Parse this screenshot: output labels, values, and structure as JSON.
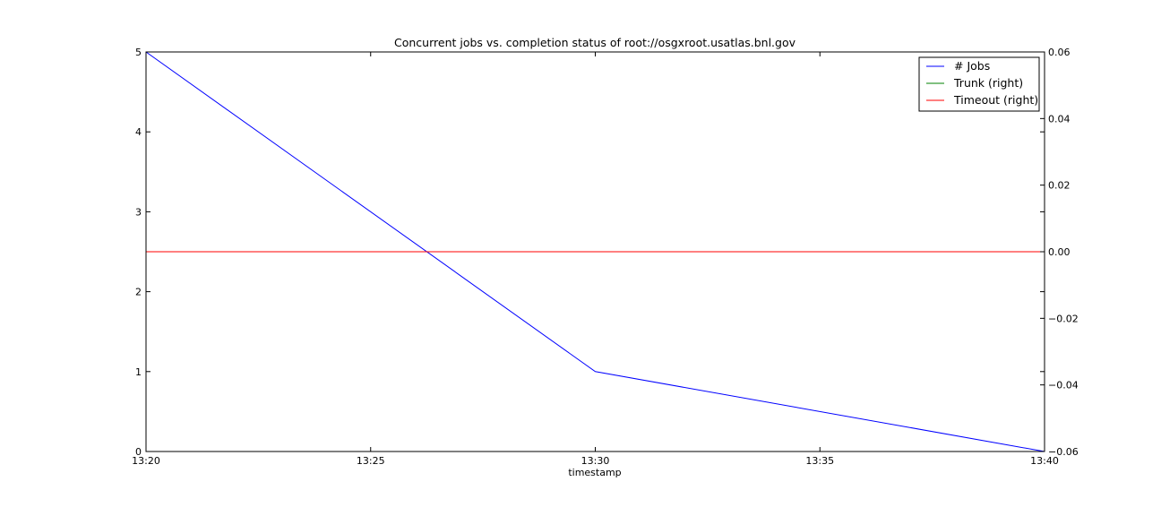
{
  "chart_data": {
    "type": "line",
    "title": "Concurrent jobs vs. completion status of root://osgxroot.usatlas.bnl.gov",
    "xlabel": "timestamp",
    "x_ticks": [
      "13:20",
      "13:25",
      "13:30",
      "13:35",
      "13:40"
    ],
    "xlim": [
      "13:20",
      "13:40"
    ],
    "ylim_left": [
      0,
      5
    ],
    "y_ticks_left": [
      "0",
      "1",
      "2",
      "3",
      "4",
      "5"
    ],
    "ylim_right": [
      -0.06,
      0.06
    ],
    "y_ticks_right": [
      "−0.06",
      "−0.04",
      "−0.02",
      "0.00",
      "0.02",
      "0.04",
      "0.06"
    ],
    "grid": false,
    "legend_position": "top-right",
    "series": [
      {
        "name": "# Jobs",
        "axis": "left",
        "color": "#0000ff",
        "points": [
          {
            "x": "13:20",
            "y": 5
          },
          {
            "x": "13:30",
            "y": 1
          },
          {
            "x": "13:40",
            "y": 0
          }
        ]
      },
      {
        "name": "Trunk (right)",
        "axis": "right",
        "color": "#008000",
        "points": [
          {
            "x": "13:20",
            "y": 0
          },
          {
            "x": "13:40",
            "y": 0
          }
        ]
      },
      {
        "name": "Timeout (right)",
        "axis": "right",
        "color": "#ff0000",
        "points": [
          {
            "x": "13:20",
            "y": 0
          },
          {
            "x": "13:40",
            "y": 0
          }
        ]
      }
    ]
  }
}
